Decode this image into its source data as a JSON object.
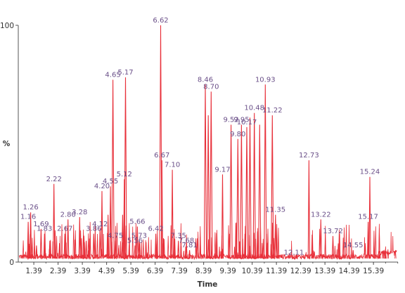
{
  "chart_data": {
    "type": "line",
    "xlabel": "Time",
    "ylabel": "%",
    "xlim": [
      0.75,
      16.4
    ],
    "ylim": [
      0,
      100
    ],
    "x_ticks": [
      "1.39",
      "2.39",
      "3.39",
      "4.39",
      "5.39",
      "6.39",
      "7.39",
      "8.39",
      "9.39",
      "10.39",
      "11.39",
      "12.39",
      "13.39",
      "14.39",
      "15.39"
    ],
    "y_ticks": [
      "0",
      "100"
    ],
    "series_color": "#e8303a",
    "peaks": [
      {
        "t": 1.16,
        "h": 17
      },
      {
        "t": 1.26,
        "h": 21
      },
      {
        "t": 1.5,
        "h": 7
      },
      {
        "t": 1.69,
        "h": 14
      },
      {
        "t": 1.83,
        "h": 12
      },
      {
        "t": 2.05,
        "h": 9
      },
      {
        "t": 2.22,
        "h": 33
      },
      {
        "t": 2.45,
        "h": 8
      },
      {
        "t": 2.67,
        "h": 12
      },
      {
        "t": 2.8,
        "h": 18
      },
      {
        "t": 3.28,
        "h": 19
      },
      {
        "t": 3.55,
        "h": 9
      },
      {
        "t": 3.86,
        "h": 12
      },
      {
        "t": 4.12,
        "h": 14
      },
      {
        "t": 4.2,
        "h": 30
      },
      {
        "t": 4.45,
        "h": 20
      },
      {
        "t": 4.55,
        "h": 32
      },
      {
        "t": 4.65,
        "h": 77
      },
      {
        "t": 4.75,
        "h": 9
      },
      {
        "t": 5.05,
        "h": 20
      },
      {
        "t": 5.12,
        "h": 35
      },
      {
        "t": 5.17,
        "h": 78
      },
      {
        "t": 5.56,
        "h": 7
      },
      {
        "t": 5.66,
        "h": 15
      },
      {
        "t": 5.73,
        "h": 9
      },
      {
        "t": 6.42,
        "h": 12
      },
      {
        "t": 6.62,
        "h": 100
      },
      {
        "t": 6.67,
        "h": 43
      },
      {
        "t": 7.1,
        "h": 39
      },
      {
        "t": 7.35,
        "h": 9
      },
      {
        "t": 7.68,
        "h": 7
      },
      {
        "t": 7.81,
        "h": 5
      },
      {
        "t": 8.46,
        "h": 75
      },
      {
        "t": 8.58,
        "h": 62
      },
      {
        "t": 8.7,
        "h": 72
      },
      {
        "t": 9.17,
        "h": 37
      },
      {
        "t": 9.52,
        "h": 58
      },
      {
        "t": 9.8,
        "h": 52
      },
      {
        "t": 9.95,
        "h": 58
      },
      {
        "t": 10.17,
        "h": 57
      },
      {
        "t": 10.3,
        "h": 61
      },
      {
        "t": 10.48,
        "h": 63
      },
      {
        "t": 10.7,
        "h": 58
      },
      {
        "t": 10.93,
        "h": 75
      },
      {
        "t": 11.22,
        "h": 62
      },
      {
        "t": 11.35,
        "h": 20
      },
      {
        "t": 12.11,
        "h": 2
      },
      {
        "t": 12.73,
        "h": 43
      },
      {
        "t": 13.22,
        "h": 18
      },
      {
        "t": 13.72,
        "h": 11
      },
      {
        "t": 14.55,
        "h": 5
      },
      {
        "t": 15.17,
        "h": 17
      },
      {
        "t": 15.24,
        "h": 36
      }
    ],
    "labels": [
      {
        "text": "1.16",
        "t": 1.16,
        "h": 17
      },
      {
        "text": "1.26",
        "t": 1.26,
        "h": 21
      },
      {
        "text": "1.69",
        "t": 1.69,
        "h": 14
      },
      {
        "text": "1.83",
        "t": 1.83,
        "h": 12
      },
      {
        "text": "2.22",
        "t": 2.22,
        "h": 33
      },
      {
        "text": "2.67",
        "t": 2.67,
        "h": 12
      },
      {
        "text": "2.80",
        "t": 2.8,
        "h": 18
      },
      {
        "text": "3.28",
        "t": 3.28,
        "h": 19
      },
      {
        "text": "3.86",
        "t": 3.86,
        "h": 12
      },
      {
        "text": "4.12",
        "t": 4.12,
        "h": 14
      },
      {
        "text": "4.20",
        "t": 4.2,
        "h": 30
      },
      {
        "text": "4.55",
        "t": 4.55,
        "h": 32
      },
      {
        "text": "4.65",
        "t": 4.65,
        "h": 77
      },
      {
        "text": "4.75",
        "t": 4.75,
        "h": 9
      },
      {
        "text": "5.17",
        "t": 5.17,
        "h": 78
      },
      {
        "text": "5.12",
        "t": 5.12,
        "h": 35
      },
      {
        "text": "5.56",
        "t": 5.56,
        "h": 7
      },
      {
        "text": "5.66",
        "t": 5.66,
        "h": 15
      },
      {
        "text": "5.73",
        "t": 5.73,
        "h": 9
      },
      {
        "text": "6.42",
        "t": 6.42,
        "h": 12
      },
      {
        "text": "6.62",
        "t": 6.62,
        "h": 100
      },
      {
        "text": "6.67",
        "t": 6.67,
        "h": 43
      },
      {
        "text": "7.10",
        "t": 7.1,
        "h": 39
      },
      {
        "text": "7.35",
        "t": 7.35,
        "h": 9
      },
      {
        "text": "7.68",
        "t": 7.68,
        "h": 7
      },
      {
        "text": "7.81",
        "t": 7.81,
        "h": 5
      },
      {
        "text": "8.46",
        "t": 8.46,
        "h": 75
      },
      {
        "text": "8.70",
        "t": 8.7,
        "h": 72
      },
      {
        "text": "9.17",
        "t": 9.17,
        "h": 37
      },
      {
        "text": "9.52",
        "t": 9.52,
        "h": 58
      },
      {
        "text": "9.80",
        "t": 9.8,
        "h": 52
      },
      {
        "text": "9.95",
        "t": 9.95,
        "h": 58
      },
      {
        "text": "10.17",
        "t": 10.17,
        "h": 57
      },
      {
        "text": "10.48",
        "t": 10.48,
        "h": 63
      },
      {
        "text": "10.93",
        "t": 10.93,
        "h": 75
      },
      {
        "text": "11.22",
        "t": 11.22,
        "h": 62
      },
      {
        "text": "11.35",
        "t": 11.35,
        "h": 20
      },
      {
        "text": "12.11",
        "t": 12.11,
        "h": 2
      },
      {
        "text": "12.73",
        "t": 12.73,
        "h": 43
      },
      {
        "text": "13.22",
        "t": 13.22,
        "h": 18
      },
      {
        "text": "13.72",
        "t": 13.72,
        "h": 11
      },
      {
        "text": "14.55",
        "t": 14.55,
        "h": 5
      },
      {
        "text": "15.17",
        "t": 15.17,
        "h": 17
      },
      {
        "text": "15.24",
        "t": 15.24,
        "h": 36
      }
    ]
  }
}
